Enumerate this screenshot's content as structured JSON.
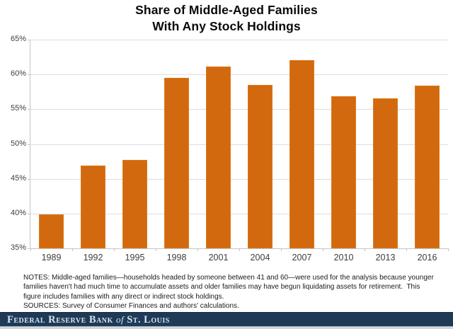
{
  "chart_data": {
    "type": "bar",
    "title": "Share of Middle-Aged Families With Any Stock Holdings",
    "title_lines": [
      "Share of Middle-Aged Families",
      "With Any Stock Holdings"
    ],
    "categories": [
      "1989",
      "1992",
      "1995",
      "1998",
      "2001",
      "2004",
      "2007",
      "2010",
      "2013",
      "2016"
    ],
    "values": [
      39.9,
      46.9,
      47.7,
      59.5,
      61.1,
      58.5,
      62.1,
      56.9,
      56.6,
      58.4
    ],
    "xlabel": "",
    "ylabel": "",
    "ylim": [
      35,
      65
    ],
    "ytick_step": 5,
    "ytick_labels": [
      "35%",
      "40%",
      "45%",
      "50%",
      "55%",
      "60%",
      "65%"
    ],
    "grid": true,
    "legend_position": "none",
    "bar_color": "#d2690e",
    "bar_edge_color": "#dd7a1c",
    "gridline_color": "#dddddd",
    "axis_color": "#c4c4c4",
    "label_color": "#3d3d3d"
  },
  "notes": {
    "notes_text": "NOTES: Middle-aged families—households headed by someone between 41 and 60—were used for the analysis because younger\nfamilies haven't had much time to accumulate assets and older families may have begun liquidating assets for retirement.  This\nfigure includes families with any direct or indirect stock holdings.",
    "sources_text": "SOURCES: Survey of Consumer Finances and authors' calculations."
  },
  "footer": {
    "text_main": "Federal Reserve Bank",
    "text_of": "of",
    "text_place": "St. Louis",
    "background_color": "#1e3a56"
  }
}
